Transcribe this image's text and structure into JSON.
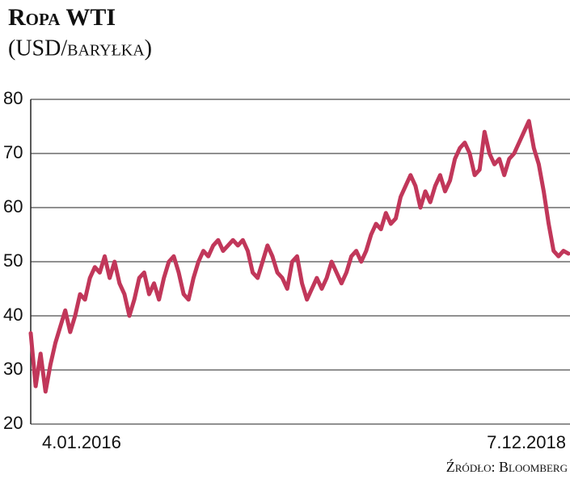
{
  "chart_data": {
    "type": "line",
    "title": "Ropa WTI",
    "subtitle": "(USD/baryłka)",
    "source": "Źródło: Bloomberg",
    "categories": [
      "4.01.2016",
      null,
      null,
      null,
      null,
      null,
      null,
      null,
      null,
      null,
      null,
      null,
      null,
      null,
      null,
      null,
      null,
      null,
      null,
      null,
      null,
      null,
      null,
      null,
      null,
      null,
      null,
      null,
      null,
      null,
      null,
      null,
      null,
      null,
      null,
      null,
      null,
      null,
      null,
      null,
      null,
      null,
      null,
      null,
      null,
      null,
      null,
      null,
      null,
      null,
      null,
      null,
      null,
      null,
      null,
      null,
      null,
      null,
      null,
      null,
      null,
      null,
      null,
      null,
      null,
      null,
      null,
      null,
      null,
      null,
      null,
      null,
      null,
      null,
      null,
      null,
      null,
      null,
      null,
      null,
      null,
      null,
      null,
      null,
      null,
      null,
      null,
      null,
      null,
      null,
      null,
      null,
      null,
      null,
      null,
      null,
      null,
      null,
      null,
      null,
      null,
      null,
      null,
      null,
      null,
      null,
      null,
      null,
      null,
      "7.12.2018"
    ],
    "series": [
      {
        "name": "Ropa WTI",
        "color": "#c1375a",
        "values": [
          36.8,
          27,
          33,
          26,
          31,
          35,
          38,
          41,
          37,
          40,
          44,
          43,
          47,
          49,
          48,
          51,
          47,
          50,
          46,
          44,
          40,
          43,
          47,
          48,
          44,
          46,
          43,
          47,
          50,
          51,
          48,
          44,
          43,
          47,
          50,
          52,
          51,
          53,
          54,
          52,
          53,
          54,
          53,
          54,
          52,
          48,
          47,
          50,
          53,
          51,
          48,
          47,
          45,
          50,
          51,
          46,
          43,
          45,
          47,
          45,
          47,
          50,
          48,
          46,
          48,
          51,
          52,
          50,
          52,
          55,
          57,
          56,
          59,
          57,
          58,
          62,
          64,
          66,
          64,
          60,
          63,
          61,
          64,
          66,
          63,
          65,
          69,
          71,
          72,
          70,
          66,
          67,
          74,
          70,
          68,
          69,
          66,
          69,
          70,
          72,
          74,
          76,
          71,
          68,
          63,
          57,
          52,
          51,
          52,
          51.5
        ]
      }
    ],
    "ylim": [
      20,
      80
    ],
    "yticks": [
      20,
      30,
      40,
      50,
      60,
      70,
      80
    ],
    "grid": true
  }
}
